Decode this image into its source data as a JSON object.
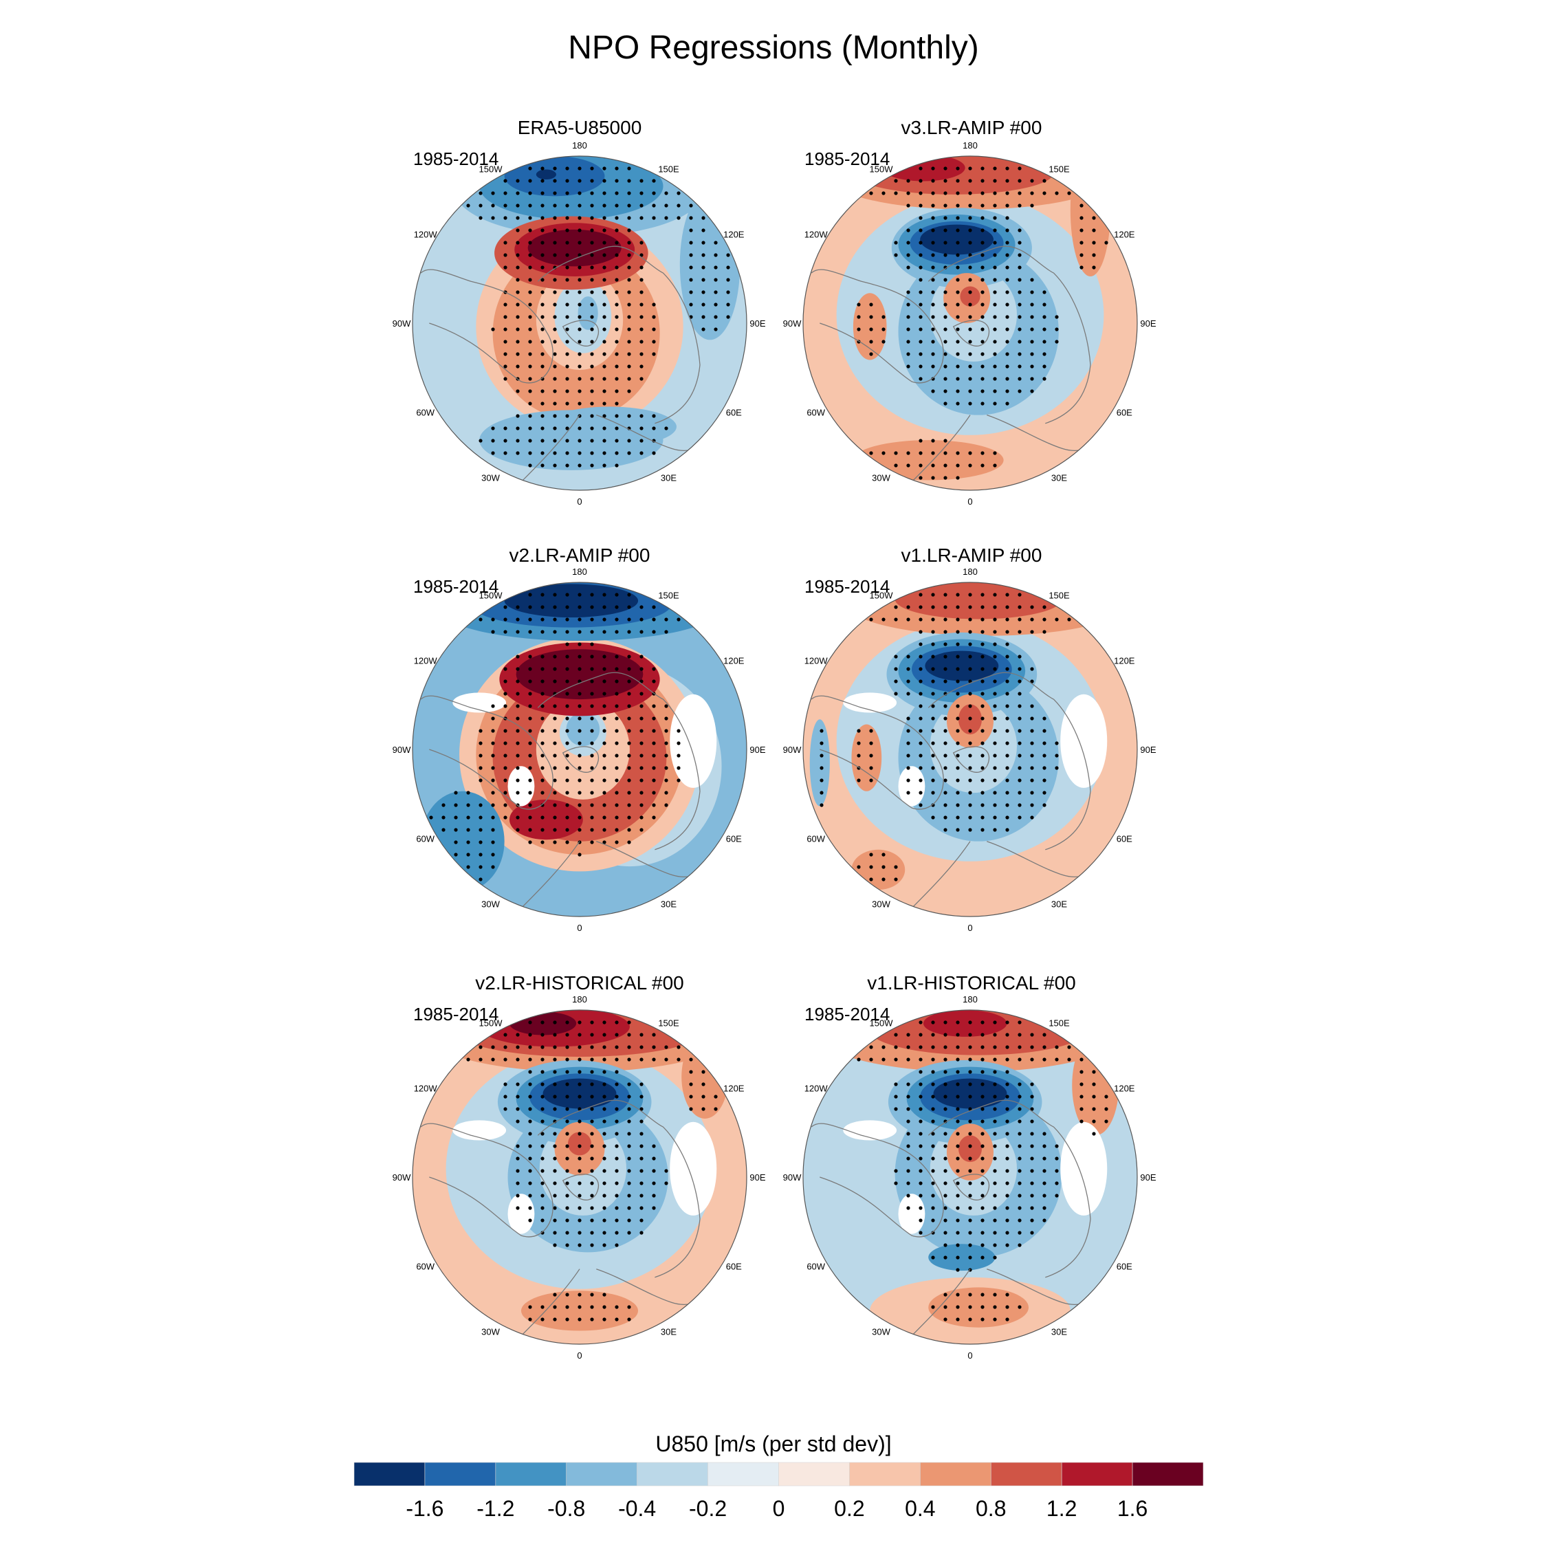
{
  "title": "NPO Regressions (Monthly)",
  "chart_data": {
    "type": "heatmap",
    "projection": "north-polar-stereographic",
    "title": "NPO Regressions (Monthly)",
    "variable": "U850",
    "units_label": "U850 [m/s (per std dev)]",
    "levels": [
      -1.6,
      -1.2,
      -0.8,
      -0.4,
      -0.2,
      0,
      0.2,
      0.4,
      0.8,
      1.2,
      1.6
    ],
    "colorbar_tick_labels": [
      "-1.6",
      "-1.2",
      "-0.8",
      "-0.4",
      "-0.2",
      "0",
      "0.2",
      "0.4",
      "0.8",
      "1.2",
      "1.6"
    ],
    "colors": [
      "#08306b",
      "#2166ac",
      "#4393c3",
      "#83badb",
      "#bbd8e8",
      "#e4edf3",
      "#f8e8e0",
      "#f7c5ab",
      "#eb9772",
      "#d05546",
      "#b0182b",
      "#6a0121"
    ],
    "legend_placement": "bottom",
    "stippling": "dots mark statistically significant regions",
    "lon_labels": [
      "180",
      "150E",
      "120E",
      "90E",
      "60E",
      "30E",
      "0",
      "30W",
      "60W",
      "90W",
      "120W",
      "150W"
    ],
    "panels": [
      {
        "title": "ERA5-U85000",
        "period": "1985-2014",
        "pattern": [
          {
            "region": "subtropical North Pacific jet (near 180, outer ring)",
            "value": -1.2,
            "min": -1.6
          },
          {
            "region": "mid-latitude North Pacific / Alaska arc",
            "value": 1.6
          },
          {
            "region": "ring over North America, Arctic and Eurasia",
            "value": 0.4
          },
          {
            "region": "near pole over Arctic",
            "value": -0.4
          },
          {
            "region": "subtropical Atlantic / North Africa",
            "value": -0.4
          }
        ]
      },
      {
        "title": "v3.LR-AMIP  #00",
        "period": "1985-2014",
        "pattern": [
          {
            "region": "subtropical North Pacific jet",
            "value": 1.2
          },
          {
            "region": "mid-latitude North Pacific",
            "value": -1.6
          },
          {
            "region": "Alaska / Beaufort",
            "value": 0.4
          },
          {
            "region": "ring over Canada, N Atlantic, Eurasia",
            "value": -0.4
          },
          {
            "region": "subtropical Atlantic / Sahara",
            "value": 0.4
          }
        ]
      },
      {
        "title": "v2.LR-AMIP  #00",
        "period": "1985-2014",
        "pattern": [
          {
            "region": "subtropical North Pacific jet",
            "value": -1.6
          },
          {
            "region": "mid-latitude North Pacific",
            "value": 1.6
          },
          {
            "region": "ring over North America, Atlantic, Eurasia",
            "value": 0.8
          },
          {
            "region": "North Atlantic max",
            "value": 1.2
          },
          {
            "region": "Arctic near Alaska",
            "value": -0.4
          },
          {
            "region": "subtropical Atlantic",
            "value": -0.4
          }
        ]
      },
      {
        "title": "v1.LR-AMIP  #00",
        "period": "1985-2014",
        "pattern": [
          {
            "region": "subtropical North Pacific jet",
            "value": 0.8
          },
          {
            "region": "mid-latitude North Pacific",
            "value": -1.6
          },
          {
            "region": "Alaska / Beaufort",
            "value": 0.8
          },
          {
            "region": "ring over Canada, N Atlantic, Eurasia",
            "value": -0.4
          },
          {
            "region": "eastern US / Gulf",
            "value": 0.2
          },
          {
            "region": "subtropical Atlantic",
            "value": 0.2
          }
        ]
      },
      {
        "title": "v2.LR-HISTORICAL  #00",
        "period": "1985-2014",
        "pattern": [
          {
            "region": "subtropical North Pacific jet",
            "value": 1.6
          },
          {
            "region": "mid-latitude North Pacific",
            "value": -1.6
          },
          {
            "region": "Alaska / Beaufort",
            "value": 0.8
          },
          {
            "region": "ring over N Atlantic, Eurasia",
            "value": -0.4
          },
          {
            "region": "subtropical Atlantic / North Africa",
            "value": 0.2
          }
        ]
      },
      {
        "title": "v1.LR-HISTORICAL  #00",
        "period": "1985-2014",
        "pattern": [
          {
            "region": "subtropical North Pacific jet",
            "value": 1.2
          },
          {
            "region": "mid-latitude North Pacific",
            "value": -1.6
          },
          {
            "region": "Alaska / Beaufort",
            "value": 0.8
          },
          {
            "region": "ring over N Atlantic, Eurasia",
            "value": -0.8
          },
          {
            "region": "subtropical Atlantic / Mediterranean",
            "value": 0.4
          }
        ]
      }
    ]
  }
}
